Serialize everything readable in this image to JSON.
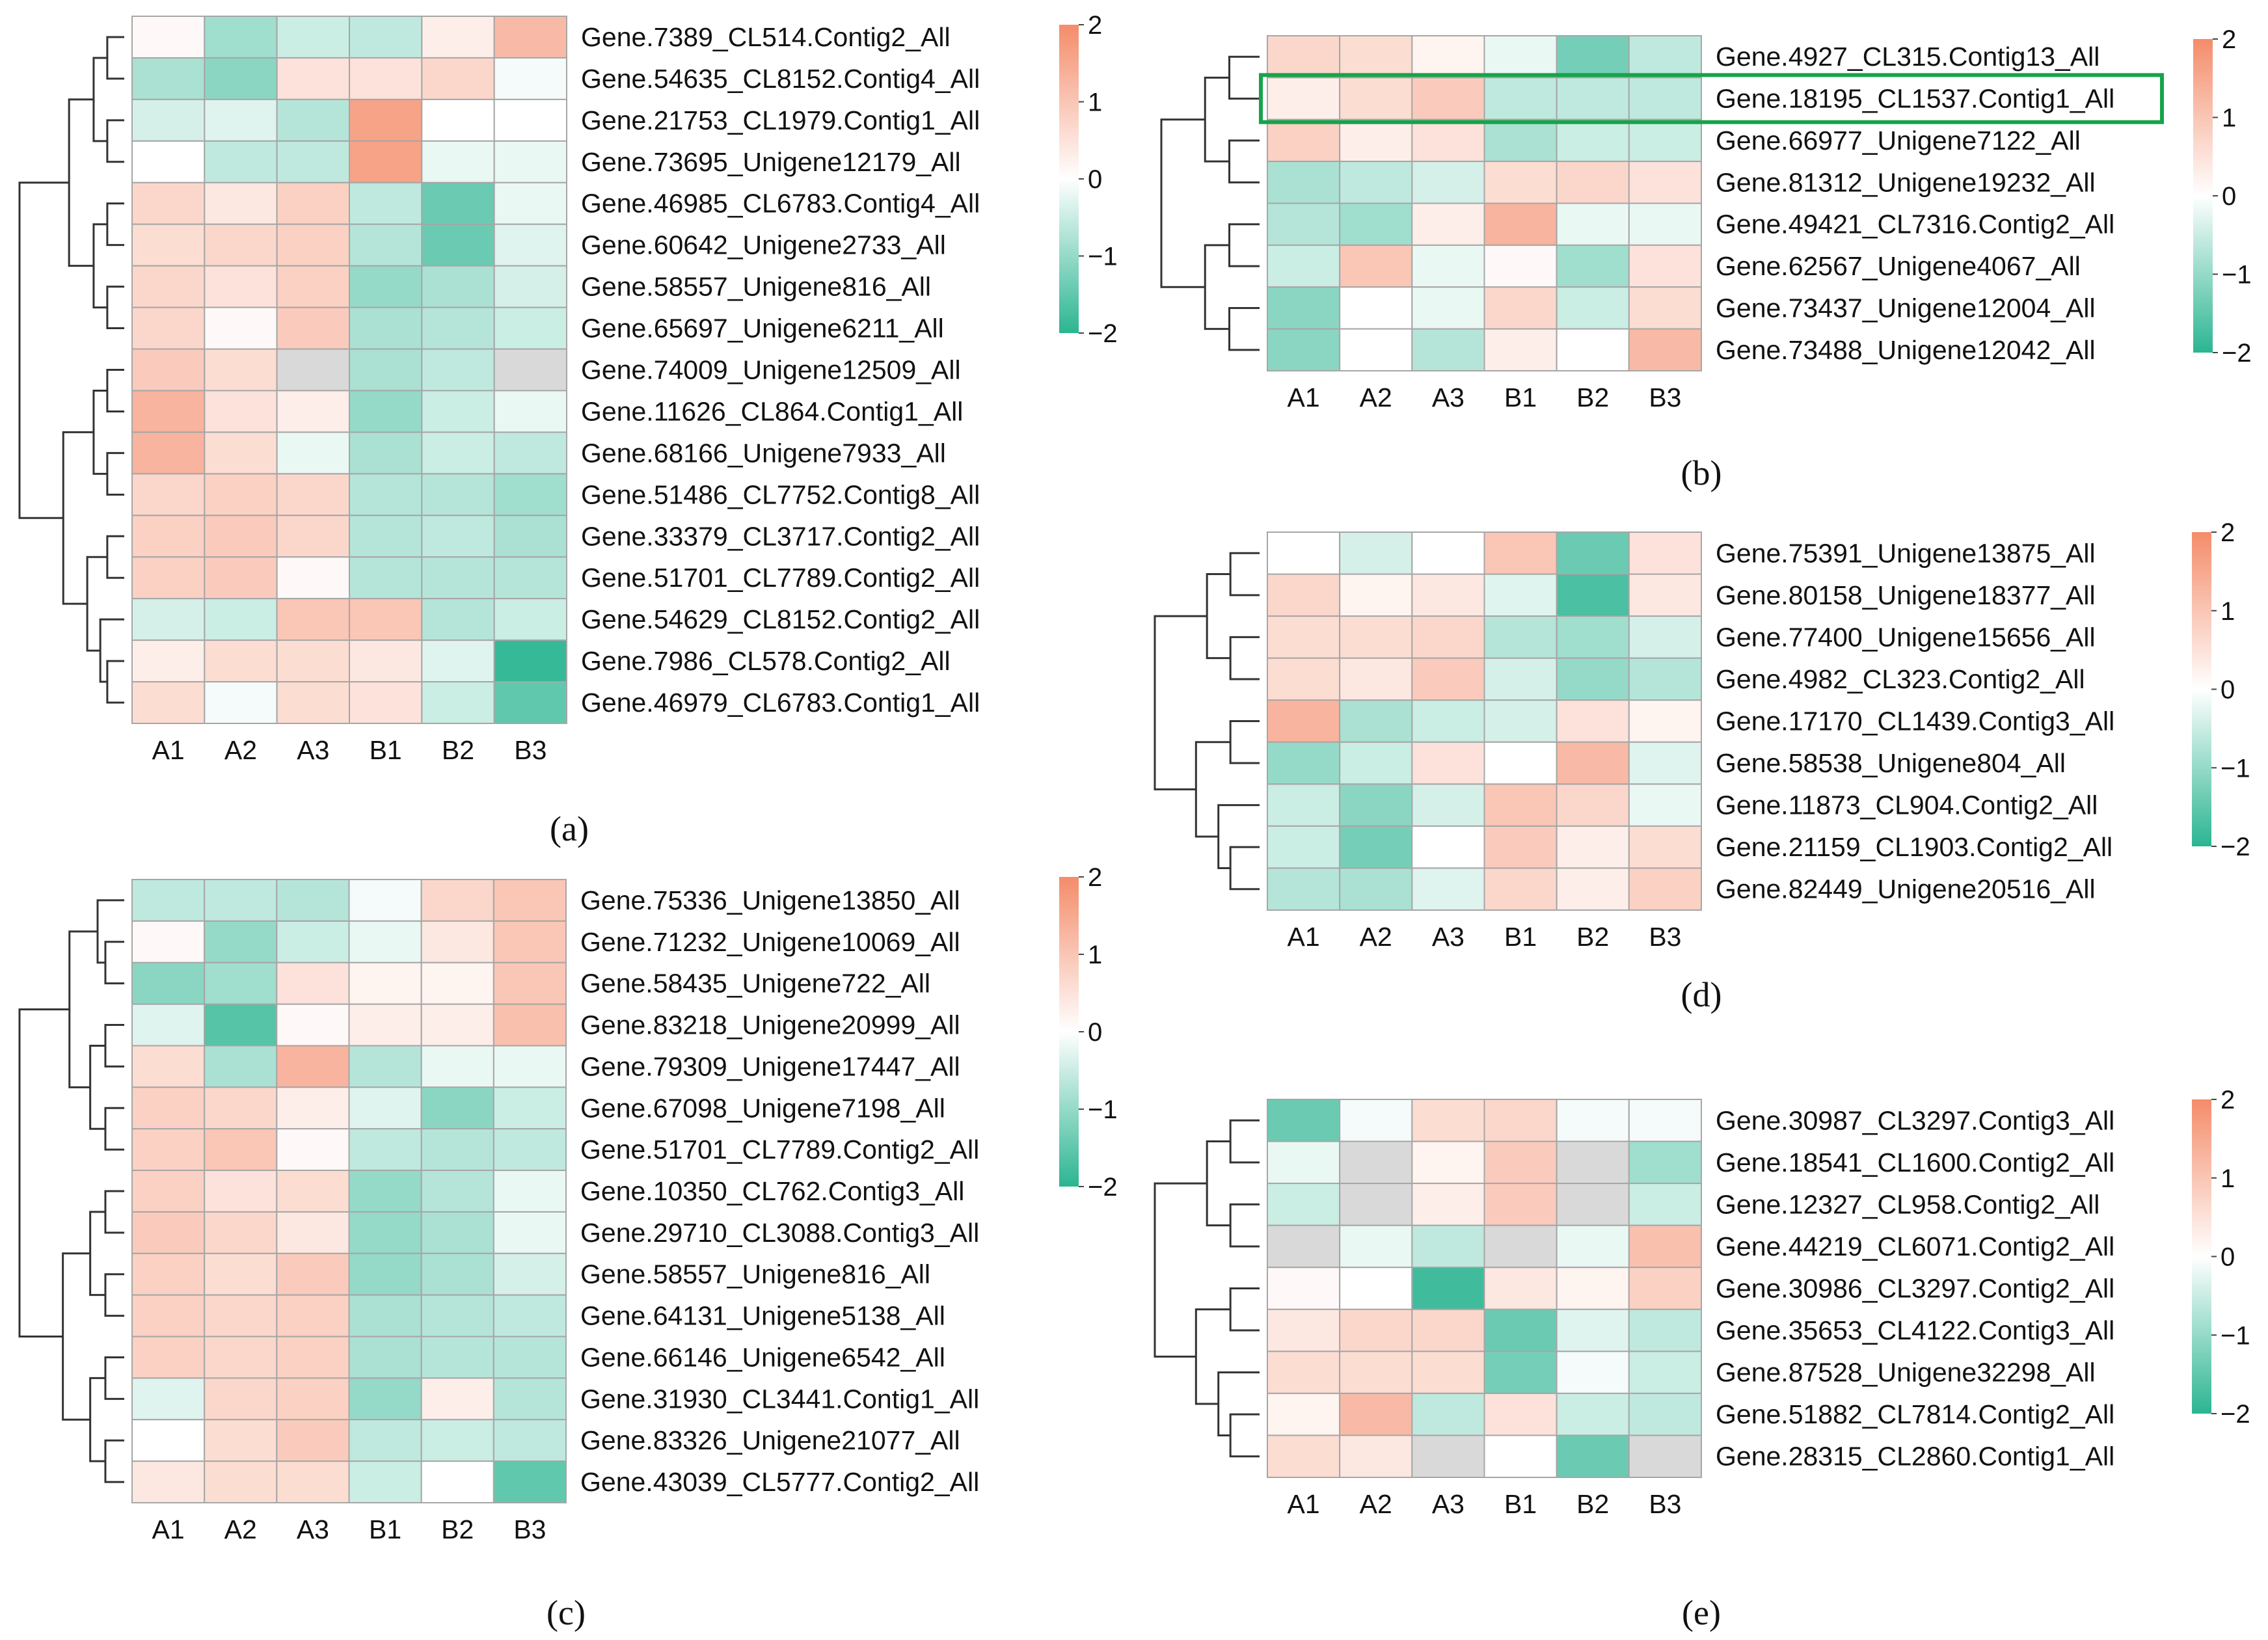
{
  "colors": {
    "high": "#f48c6a",
    "mid": "#ffffff",
    "low": "#2bb591",
    "missing": "#d9d9d9",
    "grid": "#a6a6a6",
    "highlight": "#17a34a"
  },
  "chart_data": [
    {
      "type": "heatmap",
      "panel_label": "(a)",
      "columns": [
        "A1",
        "A2",
        "A3",
        "B1",
        "B2",
        "B3"
      ],
      "rows": [
        "Gene.7389_CL514.Contig2_All",
        "Gene.54635_CL8152.Contig4_All",
        "Gene.21753_CL1979.Contig1_All",
        "Gene.73695_Unigene12179_All",
        "Gene.46985_CL6783.Contig4_All",
        "Gene.60642_Unigene2733_All",
        "Gene.58557_Unigene816_All",
        "Gene.65697_Unigene6211_All",
        "Gene.74009_Unigene12509_All",
        "Gene.11626_CL864.Contig1_All",
        "Gene.68166_Unigene7933_All",
        "Gene.51486_CL7752.Contig8_All",
        "Gene.33379_CL3717.Contig2_All",
        "Gene.51701_CL7789.Contig2_All",
        "Gene.54629_CL8152.Contig2_All",
        "Gene.7986_CL578.Contig2_All",
        "Gene.46979_CL6783.Contig1_All"
      ],
      "values": [
        [
          0.1,
          -0.9,
          -0.5,
          -0.6,
          0.3,
          1.2
        ],
        [
          -0.8,
          -1.1,
          0.5,
          0.5,
          0.7,
          -0.1
        ],
        [
          -0.4,
          -0.3,
          -0.7,
          1.6,
          0.0,
          0.0
        ],
        [
          0.0,
          -0.6,
          -0.6,
          1.6,
          -0.2,
          -0.2
        ],
        [
          0.7,
          0.4,
          0.8,
          -0.6,
          -1.4,
          -0.2
        ],
        [
          0.6,
          0.7,
          0.8,
          -0.7,
          -1.4,
          -0.3
        ],
        [
          0.7,
          0.5,
          0.8,
          -1.0,
          -0.8,
          -0.4
        ],
        [
          0.7,
          0.1,
          0.9,
          -0.8,
          -0.7,
          -0.5
        ],
        [
          0.9,
          0.6,
          null,
          -0.8,
          -0.6,
          null
        ],
        [
          1.3,
          0.5,
          0.3,
          -1.0,
          -0.5,
          -0.2
        ],
        [
          1.3,
          0.6,
          -0.2,
          -0.8,
          -0.5,
          -0.6
        ],
        [
          0.7,
          0.8,
          0.7,
          -0.7,
          -0.7,
          -0.9
        ],
        [
          0.8,
          0.9,
          0.7,
          -0.7,
          -0.6,
          -0.8
        ],
        [
          0.8,
          0.9,
          0.1,
          -0.7,
          -0.7,
          -0.7
        ],
        [
          -0.4,
          -0.5,
          1.0,
          1.0,
          -0.7,
          -0.5
        ],
        [
          0.3,
          0.6,
          0.6,
          0.4,
          -0.3,
          -1.9
        ],
        [
          0.6,
          -0.1,
          0.6,
          0.5,
          -0.5,
          -1.5
        ]
      ],
      "colorbar_ticks": [
        "2",
        "1",
        "0",
        "−1",
        "−2"
      ],
      "ylim": [
        -2,
        2
      ]
    },
    {
      "type": "heatmap",
      "panel_label": "(b)",
      "columns": [
        "A1",
        "A2",
        "A3",
        "B1",
        "B2",
        "B3"
      ],
      "rows": [
        "Gene.4927_CL315.Contig13_All",
        "Gene.18195_CL1537.Contig1_All",
        "Gene.66977_Unigene7122_All",
        "Gene.81312_Unigene19232_All",
        "Gene.49421_CL7316.Contig2_All",
        "Gene.62567_Unigene4067_All",
        "Gene.73437_Unigene12004_All",
        "Gene.73488_Unigene12042_All"
      ],
      "values": [
        [
          0.7,
          0.6,
          0.2,
          -0.2,
          -1.3,
          -0.6
        ],
        [
          0.3,
          0.6,
          0.9,
          -0.6,
          -0.6,
          -0.6
        ],
        [
          0.8,
          0.3,
          0.5,
          -0.8,
          -0.5,
          -0.5
        ],
        [
          -0.8,
          -0.6,
          -0.4,
          0.6,
          0.7,
          0.5
        ],
        [
          -0.7,
          -0.9,
          0.3,
          1.3,
          -0.2,
          -0.2
        ],
        [
          -0.5,
          1.0,
          -0.2,
          0.1,
          -0.9,
          0.5
        ],
        [
          -1.1,
          0.0,
          -0.2,
          0.7,
          -0.5,
          0.6
        ],
        [
          -1.1,
          0.0,
          -0.7,
          0.3,
          0.0,
          1.2
        ]
      ],
      "highlighted_row": "Gene.18195_CL1537.Contig1_All",
      "colorbar_ticks": [
        "2",
        "1",
        "0",
        "−1",
        "−2"
      ],
      "ylim": [
        -2,
        2
      ]
    },
    {
      "type": "heatmap",
      "panel_label": "(c)",
      "columns": [
        "A1",
        "A2",
        "A3",
        "B1",
        "B2",
        "B3"
      ],
      "rows": [
        "Gene.75336_Unigene13850_All",
        "Gene.71232_Unigene10069_All",
        "Gene.58435_Unigene722_All",
        "Gene.83218_Unigene20999_All",
        "Gene.79309_Unigene17447_All",
        "Gene.67098_Unigene7198_All",
        "Gene.51701_CL7789.Contig2_All",
        "Gene.10350_CL762.Contig3_All",
        "Gene.29710_CL3088.Contig3_All",
        "Gene.58557_Unigene816_All",
        "Gene.64131_Unigene5138_All",
        "Gene.66146_Unigene6542_All",
        "Gene.31930_CL3441.Contig1_All",
        "Gene.83326_Unigene21077_All",
        "Gene.43039_CL5777.Contig2_All"
      ],
      "values": [
        [
          -0.6,
          -0.6,
          -0.7,
          -0.1,
          0.7,
          1.0
        ],
        [
          0.1,
          -1.0,
          -0.5,
          -0.2,
          0.4,
          1.0
        ],
        [
          -1.1,
          -0.9,
          0.5,
          0.2,
          0.2,
          1.0
        ],
        [
          -0.3,
          -1.6,
          0.1,
          0.3,
          0.3,
          1.1
        ],
        [
          0.6,
          -0.8,
          1.3,
          -0.7,
          -0.2,
          -0.2
        ],
        [
          0.8,
          0.7,
          0.3,
          -0.3,
          -1.1,
          -0.5
        ],
        [
          0.8,
          1.0,
          0.1,
          -0.6,
          -0.7,
          -0.6
        ],
        [
          0.8,
          0.5,
          0.6,
          -1.0,
          -0.7,
          -0.2
        ],
        [
          0.9,
          0.7,
          0.4,
          -1.0,
          -0.8,
          -0.2
        ],
        [
          0.8,
          0.6,
          0.9,
          -1.0,
          -0.8,
          -0.4
        ],
        [
          0.8,
          0.7,
          0.8,
          -0.8,
          -0.7,
          -0.6
        ],
        [
          0.8,
          0.7,
          0.8,
          -0.8,
          -0.7,
          -0.7
        ],
        [
          -0.3,
          0.7,
          0.8,
          -1.0,
          0.3,
          -0.7
        ],
        [
          0.0,
          0.6,
          0.9,
          -0.6,
          -0.5,
          -0.6
        ],
        [
          0.4,
          0.6,
          0.6,
          -0.5,
          0.0,
          -1.5
        ]
      ],
      "colorbar_ticks": [
        "2",
        "1",
        "0",
        "−1",
        "−2"
      ],
      "ylim": [
        -2,
        2
      ]
    },
    {
      "type": "heatmap",
      "panel_label": "(d)",
      "columns": [
        "A1",
        "A2",
        "A3",
        "B1",
        "B2",
        "B3"
      ],
      "rows": [
        "Gene.75391_Unigene13875_All",
        "Gene.80158_Unigene18377_All",
        "Gene.77400_Unigene15656_All",
        "Gene.4982_CL323.Contig2_All",
        "Gene.17170_CL1439.Contig3_All",
        "Gene.58538_Unigene804_All",
        "Gene.11873_CL904.Contig2_All",
        "Gene.21159_CL1903.Contig2_All",
        "Gene.82449_Unigene20516_All"
      ],
      "values": [
        [
          0.0,
          -0.4,
          0.0,
          1.0,
          -1.4,
          0.5
        ],
        [
          0.7,
          0.2,
          0.4,
          -0.3,
          -1.7,
          0.4
        ],
        [
          0.6,
          0.6,
          0.7,
          -0.7,
          -0.9,
          -0.4
        ],
        [
          0.6,
          0.4,
          0.9,
          -0.4,
          -1.0,
          -0.7
        ],
        [
          1.3,
          -0.8,
          -0.5,
          -0.4,
          0.5,
          0.2
        ],
        [
          -1.0,
          -0.5,
          0.5,
          0.0,
          1.2,
          -0.3
        ],
        [
          -0.5,
          -1.1,
          -0.4,
          1.0,
          0.7,
          -0.2
        ],
        [
          -0.5,
          -1.3,
          0.0,
          0.9,
          0.3,
          0.6
        ],
        [
          -0.7,
          -0.8,
          -0.3,
          0.7,
          0.3,
          0.8
        ]
      ],
      "colorbar_ticks": [
        "2",
        "1",
        "0",
        "−1",
        "−2"
      ],
      "ylim": [
        -2,
        2
      ]
    },
    {
      "type": "heatmap",
      "panel_label": "(e)",
      "columns": [
        "A1",
        "A2",
        "A3",
        "B1",
        "B2",
        "B3"
      ],
      "rows": [
        "Gene.30987_CL3297.Contig3_All",
        "Gene.18541_CL1600.Contig2_All",
        "Gene.12327_CL958.Contig2_All",
        "Gene.44219_CL6071.Contig2_All",
        "Gene.30986_CL3297.Contig2_All",
        "Gene.35653_CL4122.Contig3_All",
        "Gene.87528_Unigene32298_All",
        "Gene.51882_CL7814.Contig2_All",
        "Gene.28315_CL2860.Contig1_All"
      ],
      "values": [
        [
          -1.4,
          -0.1,
          0.6,
          0.7,
          -0.1,
          -0.1
        ],
        [
          -0.2,
          null,
          0.2,
          0.9,
          null,
          -0.9
        ],
        [
          -0.5,
          null,
          0.3,
          0.9,
          null,
          -0.5
        ],
        [
          null,
          -0.2,
          -0.6,
          null,
          -0.2,
          1.1
        ],
        [
          0.1,
          0.0,
          -1.8,
          0.4,
          0.2,
          0.8
        ],
        [
          0.4,
          0.7,
          0.7,
          -1.4,
          -0.3,
          -0.6
        ],
        [
          0.6,
          0.6,
          0.6,
          -1.3,
          -0.1,
          -0.5
        ],
        [
          0.2,
          1.2,
          -0.6,
          0.5,
          -0.5,
          -0.6
        ],
        [
          0.6,
          0.4,
          null,
          0.0,
          -1.4,
          null
        ]
      ],
      "colorbar_ticks": [
        "2",
        "1",
        "0",
        "−1",
        "−2"
      ],
      "ylim": [
        -2,
        2
      ]
    }
  ]
}
